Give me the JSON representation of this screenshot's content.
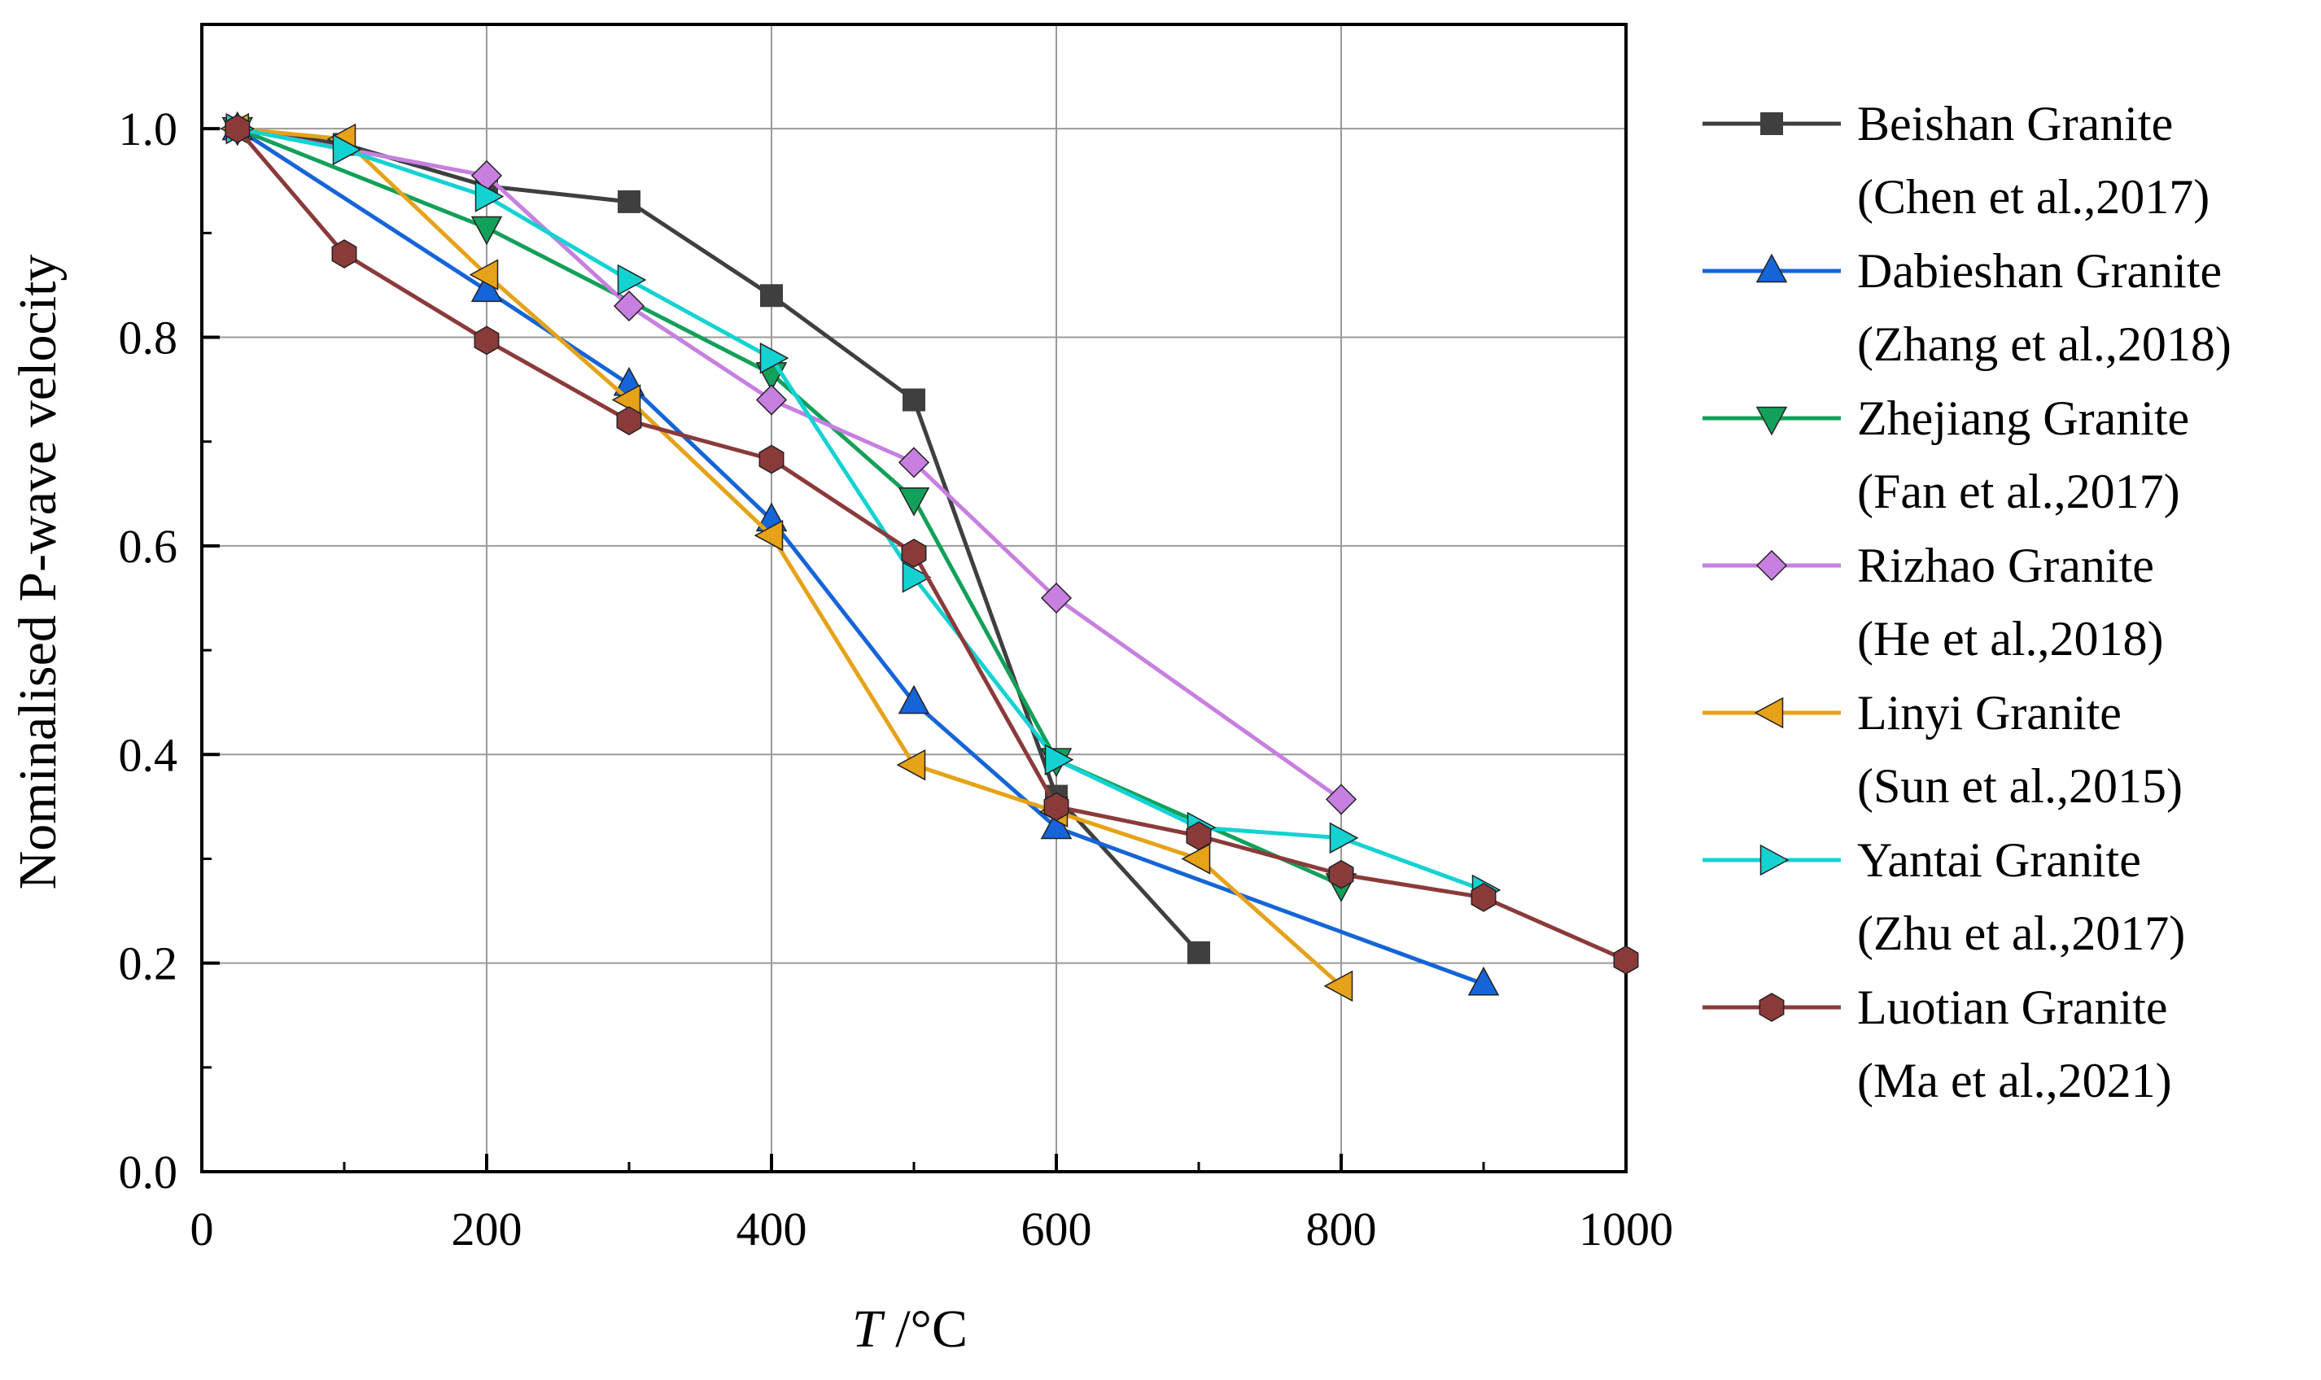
{
  "chart_data": {
    "type": "line",
    "title": "",
    "xlabel_italic": "T",
    "xlabel_unit": " /°C",
    "ylabel": "Nominalised P-wave velocity",
    "xlim": [
      0,
      1000
    ],
    "ylim": [
      0.0,
      1.1
    ],
    "x_ticks": [
      0,
      200,
      400,
      600,
      800,
      1000
    ],
    "x_tick_labels": [
      "0",
      "200",
      "400",
      "600",
      "800",
      "1000"
    ],
    "y_ticks": [
      0.0,
      0.2,
      0.4,
      0.6,
      0.8,
      1.0
    ],
    "y_tick_labels": [
      "0.0",
      "0.2",
      "0.4",
      "0.6",
      "0.8",
      "1.0"
    ],
    "grid": true,
    "legend_position": "right",
    "series": [
      {
        "name": "Beishan Granite",
        "source": "(Chen et al.,2017)",
        "color": "#3f3f3f",
        "marker": "square",
        "x": [
          25,
          100,
          200,
          300,
          400,
          500,
          600,
          700
        ],
        "y": [
          1.0,
          0.985,
          0.945,
          0.93,
          0.84,
          0.74,
          0.36,
          0.21
        ]
      },
      {
        "name": "Dabieshan Granite",
        "source": "(Zhang et al.,2018)",
        "color": "#1565d8",
        "marker": "triangle-up",
        "x": [
          25,
          200,
          300,
          400,
          500,
          600,
          900
        ],
        "y": [
          1.0,
          0.845,
          0.755,
          0.625,
          0.45,
          0.33,
          0.18
        ]
      },
      {
        "name": "Zhejiang Granite",
        "source": "(Fan et al.,2017)",
        "color": "#13a05a",
        "marker": "triangle-down",
        "x": [
          25,
          200,
          400,
          500,
          600,
          800
        ],
        "y": [
          1.0,
          0.905,
          0.765,
          0.645,
          0.395,
          0.275
        ]
      },
      {
        "name": "Rizhao Granite",
        "source": "(He et al.,2018)",
        "color": "#c77fe0",
        "marker": "diamond",
        "x": [
          25,
          200,
          300,
          400,
          500,
          600,
          800
        ],
        "y": [
          1.0,
          0.955,
          0.83,
          0.74,
          0.68,
          0.55,
          0.357
        ]
      },
      {
        "name": "Linyi Granite",
        "source": "(Sun et al.,2015)",
        "color": "#e6a218",
        "marker": "triangle-left",
        "x": [
          25,
          100,
          200,
          300,
          400,
          500,
          600,
          700,
          800
        ],
        "y": [
          1.0,
          0.99,
          0.86,
          0.74,
          0.61,
          0.39,
          0.345,
          0.3,
          0.178
        ]
      },
      {
        "name": "Yantai Granite",
        "source": "(Zhu et al.,2017)",
        "color": "#14d2d2",
        "marker": "triangle-right",
        "x": [
          25,
          100,
          200,
          300,
          400,
          500,
          600,
          700,
          800,
          900
        ],
        "y": [
          1.0,
          0.98,
          0.935,
          0.855,
          0.78,
          0.57,
          0.395,
          0.33,
          0.32,
          0.27
        ]
      },
      {
        "name": "Luotian Granite",
        "source": "(Ma et al.,2021)",
        "color": "#8b3a3a",
        "marker": "hexagon",
        "x": [
          25,
          100,
          200,
          300,
          400,
          500,
          600,
          700,
          800,
          900,
          1000
        ],
        "y": [
          1.0,
          0.88,
          0.797,
          0.72,
          0.683,
          0.593,
          0.35,
          0.322,
          0.285,
          0.263,
          0.203
        ]
      }
    ]
  }
}
